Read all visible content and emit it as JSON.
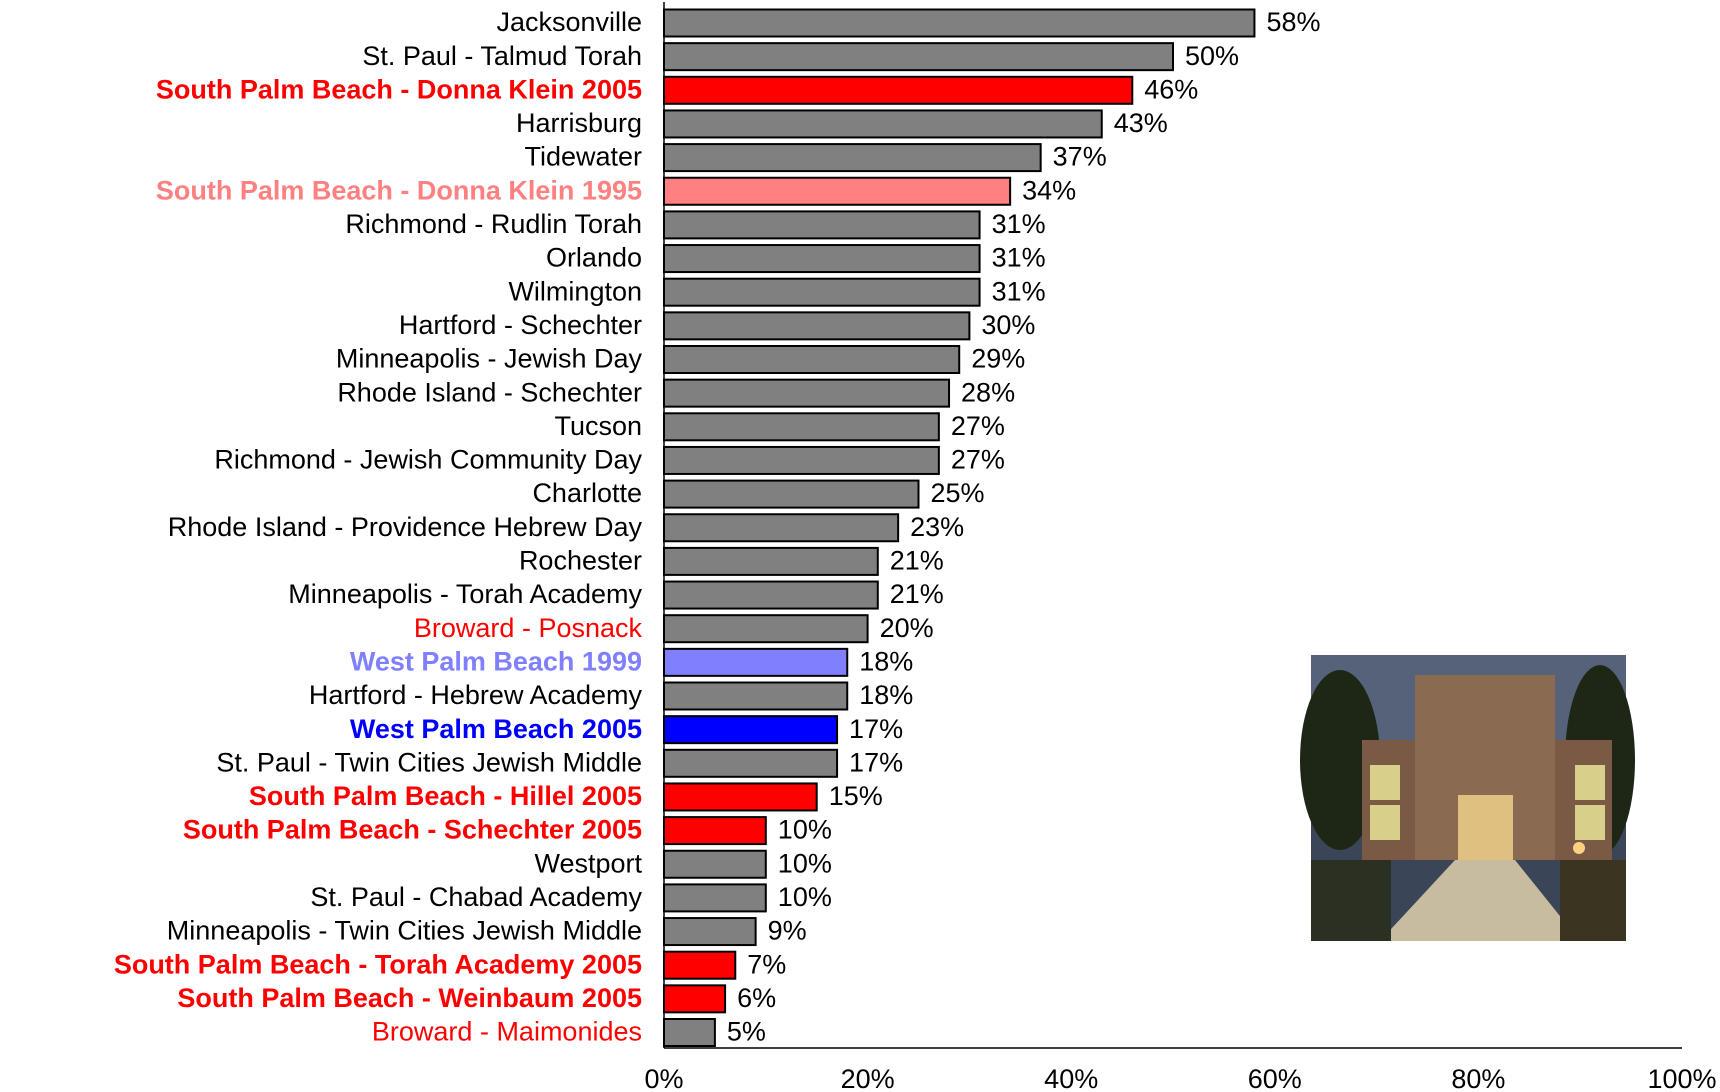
{
  "chart_data": {
    "type": "barh",
    "categories": [
      "Jacksonville",
      "St. Paul - Talmud Torah",
      "South Palm Beach - Donna Klein 2005",
      "Harrisburg",
      "Tidewater",
      "South Palm Beach - Donna Klein 1995",
      "Richmond - Rudlin Torah",
      "Orlando",
      "Wilmington",
      "Hartford - Schechter",
      "Minneapolis - Jewish Day",
      "Rhode Island - Schechter",
      "Tucson",
      "Richmond - Jewish Community Day",
      "Charlotte",
      "Rhode Island - Providence Hebrew Day",
      "Rochester",
      "Minneapolis - Torah Academy",
      "Broward - Posnack",
      "West Palm Beach 1999",
      "Hartford - Hebrew Academy",
      "West Palm Beach 2005",
      "St. Paul - Twin Cities Jewish Middle",
      "South Palm Beach - Hillel 2005",
      "South Palm Beach - Schechter 2005",
      "Westport",
      "St. Paul - Chabad Academy",
      "Minneapolis - Twin Cities Jewish Middle",
      "South Palm Beach - Torah Academy 2005",
      "South Palm Beach - Weinbaum 2005",
      "Broward - Maimonides"
    ],
    "values": [
      58,
      50,
      46,
      43,
      37,
      34,
      31,
      31,
      31,
      30,
      29,
      28,
      27,
      27,
      25,
      23,
      21,
      21,
      20,
      18,
      18,
      17,
      17,
      15,
      10,
      10,
      10,
      9,
      7,
      6,
      5
    ],
    "value_labels": [
      "58%",
      "50%",
      "46%",
      "43%",
      "37%",
      "34%",
      "31%",
      "31%",
      "31%",
      "30%",
      "29%",
      "28%",
      "27%",
      "27%",
      "25%",
      "23%",
      "21%",
      "21%",
      "20%",
      "18%",
      "18%",
      "17%",
      "17%",
      "15%",
      "10%",
      "10%",
      "10%",
      "9%",
      "7%",
      "6%",
      "5%"
    ],
    "colors": [
      "#808080",
      "#808080",
      "#ff0000",
      "#808080",
      "#808080",
      "#ff8080",
      "#808080",
      "#808080",
      "#808080",
      "#808080",
      "#808080",
      "#808080",
      "#808080",
      "#808080",
      "#808080",
      "#808080",
      "#808080",
      "#808080",
      "#808080",
      "#8080ff",
      "#808080",
      "#0000ff",
      "#808080",
      "#ff0000",
      "#ff0000",
      "#808080",
      "#808080",
      "#808080",
      "#ff0000",
      "#ff0000",
      "#808080"
    ],
    "label_colors": [
      "#000000",
      "#000000",
      "#ff0000",
      "#000000",
      "#000000",
      "#ff8080",
      "#000000",
      "#000000",
      "#000000",
      "#000000",
      "#000000",
      "#000000",
      "#000000",
      "#000000",
      "#000000",
      "#000000",
      "#000000",
      "#000000",
      "#ff0000",
      "#8080ff",
      "#000000",
      "#0000ff",
      "#000000",
      "#ff0000",
      "#ff0000",
      "#000000",
      "#000000",
      "#000000",
      "#ff0000",
      "#ff0000",
      "#ff0000"
    ],
    "label_bold": [
      false,
      false,
      true,
      false,
      false,
      true,
      false,
      false,
      false,
      false,
      false,
      false,
      false,
      false,
      false,
      false,
      false,
      false,
      false,
      true,
      false,
      true,
      false,
      true,
      true,
      false,
      false,
      false,
      true,
      true,
      false
    ],
    "xlim": [
      0,
      100
    ],
    "xticks": [
      {
        "value": 0,
        "label": "0%"
      },
      {
        "value": 20,
        "label": "20%"
      },
      {
        "value": 40,
        "label": "40%"
      },
      {
        "value": 60,
        "label": "60%"
      },
      {
        "value": 80,
        "label": "80%"
      },
      {
        "value": 100,
        "label": "100%"
      }
    ],
    "grid": false
  }
}
